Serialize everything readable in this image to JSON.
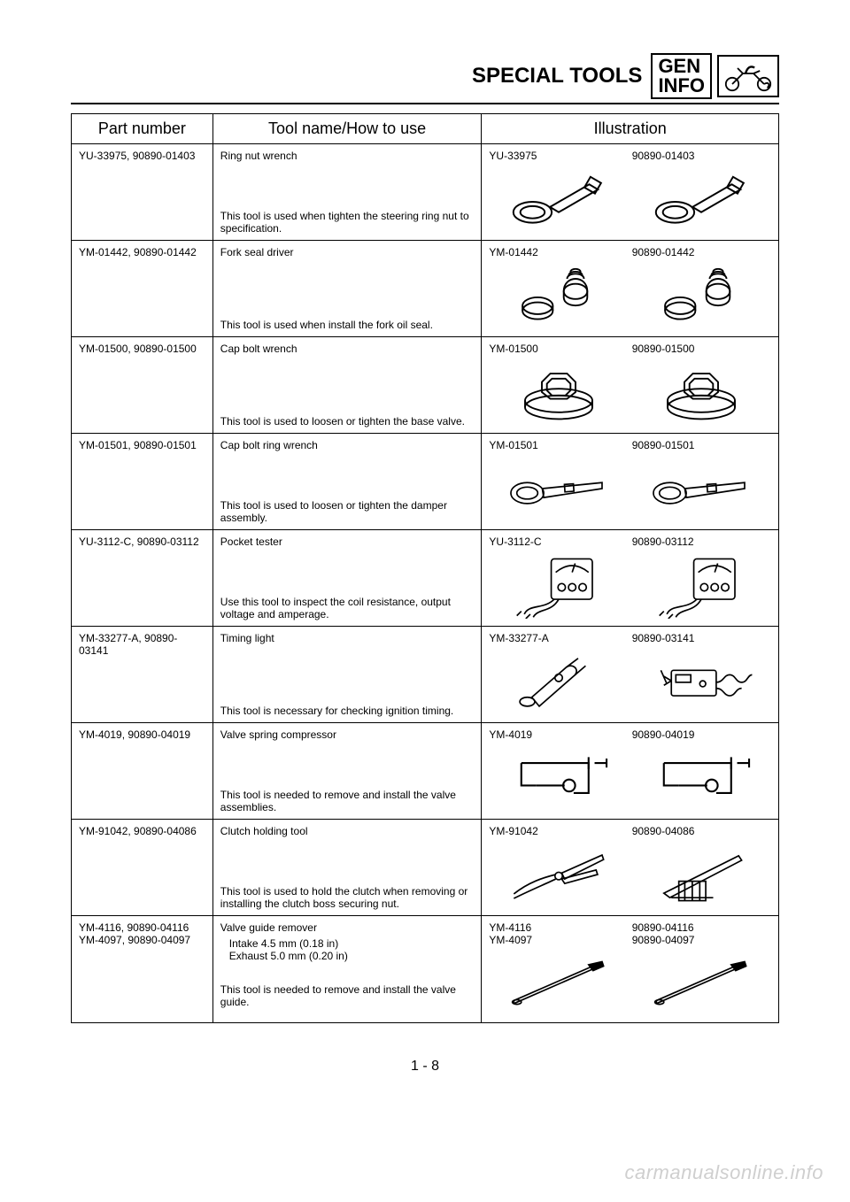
{
  "header": {
    "title": "SPECIAL TOOLS",
    "box_line1": "GEN",
    "box_line2": "INFO"
  },
  "table": {
    "headers": {
      "part": "Part number",
      "tool": "Tool name/How to use",
      "ill": "Illustration"
    },
    "rows": [
      {
        "part": "YU-33975, 90890-01403",
        "name": "Ring nut wrench",
        "sub": [],
        "desc": "This tool is used when tighten the steering ring nut to specification.",
        "ill1": "YU-33975",
        "ill2": "90890-01403",
        "icon": "ring-nut-wrench"
      },
      {
        "part": "YM-01442, 90890-01442",
        "name": "Fork seal driver",
        "sub": [],
        "desc": "This tool is used when install the fork oil seal.",
        "ill1": "YM-01442",
        "ill2": "90890-01442",
        "icon": "fork-seal-driver"
      },
      {
        "part": "YM-01500, 90890-01500",
        "name": "Cap bolt wrench",
        "sub": [],
        "desc": "This tool is used to loosen or tighten the base valve.",
        "ill1": "YM-01500",
        "ill2": "90890-01500",
        "icon": "cap-bolt-wrench"
      },
      {
        "part": "YM-01501, 90890-01501",
        "name": "Cap bolt ring wrench",
        "sub": [],
        "desc": "This tool is used to loosen or tighten the damper assembly.",
        "ill1": "YM-01501",
        "ill2": "90890-01501",
        "icon": "cap-bolt-ring-wrench"
      },
      {
        "part": "YU-3112-C, 90890-03112",
        "name": "Pocket tester",
        "sub": [],
        "desc": "Use this tool to inspect the coil resistance, output voltage and amperage.",
        "ill1": "YU-3112-C",
        "ill2": "90890-03112",
        "icon": "pocket-tester"
      },
      {
        "part": "YM-33277-A, 90890-03141",
        "name": "Timing light",
        "sub": [],
        "desc": "This tool is necessary for checking ignition timing.",
        "ill1": "YM-33277-A",
        "ill2": "90890-03141",
        "icon": "timing-light",
        "icon2": "timing-light-alt"
      },
      {
        "part": "YM-4019, 90890-04019",
        "name": "Valve spring compressor",
        "sub": [],
        "desc": "This tool is needed to remove and install the valve assemblies.",
        "ill1": "YM-4019",
        "ill2": "90890-04019",
        "icon": "valve-spring-compressor"
      },
      {
        "part": "YM-91042, 90890-04086",
        "name": "Clutch holding tool",
        "sub": [],
        "desc": "This tool is used to hold the clutch when removing or installing the clutch boss securing nut.",
        "ill1": "YM-91042",
        "ill2": "90890-04086",
        "icon": "clutch-holding-tool",
        "icon2": "clutch-holding-tool-alt"
      },
      {
        "part": "YM-4116, 90890-04116\nYM-4097, 90890-04097",
        "name": "Valve guide remover",
        "sub": [
          "Intake 4.5 mm (0.18 in)",
          "Exhaust 5.0 mm (0.20 in)"
        ],
        "desc": "This tool is needed to remove and install the valve guide.",
        "ill1": "YM-4116\nYM-4097",
        "ill2": "90890-04116\n90890-04097",
        "icon": "valve-guide-remover"
      }
    ]
  },
  "page_number": "1 - 8",
  "watermark": "carmanualsonline.info",
  "svg_stroke": "#000000",
  "svg_fill": "#ffffff"
}
